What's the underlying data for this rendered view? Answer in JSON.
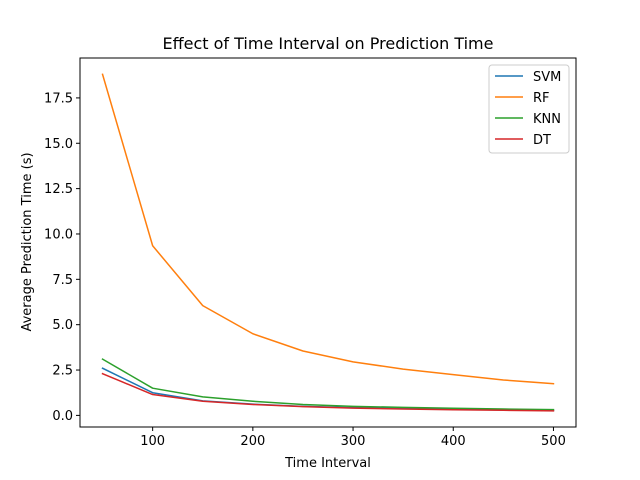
{
  "chart_data": {
    "type": "line",
    "title": "Effect of Time Interval on Prediction Time",
    "xlabel": "Time Interval",
    "ylabel": "Average Prediction Time (s)",
    "x": [
      50,
      100,
      150,
      200,
      250,
      300,
      350,
      400,
      450,
      500
    ],
    "xlim": [
      27.5,
      522.5
    ],
    "ylim": [
      -0.64,
      19.7
    ],
    "xticks": [
      100,
      200,
      300,
      400,
      500
    ],
    "yticks": [
      0.0,
      2.5,
      5.0,
      7.5,
      10.0,
      12.5,
      15.0,
      17.5
    ],
    "xtick_labels": [
      "100",
      "200",
      "300",
      "400",
      "500"
    ],
    "ytick_labels": [
      "0.0",
      "2.5",
      "5.0",
      "7.5",
      "10.0",
      "12.5",
      "15.0",
      "17.5"
    ],
    "grid": false,
    "legend_position": "top-right",
    "series": [
      {
        "name": "SVM",
        "color": "#1f77b4",
        "values": [
          2.6,
          1.25,
          0.8,
          0.62,
          0.5,
          0.43,
          0.38,
          0.34,
          0.3,
          0.28
        ]
      },
      {
        "name": "RF",
        "color": "#ff7f0e",
        "values": [
          18.8,
          9.35,
          6.05,
          4.5,
          3.55,
          2.95,
          2.55,
          2.25,
          1.95,
          1.75
        ]
      },
      {
        "name": "KNN",
        "color": "#2ca02c",
        "values": [
          3.1,
          1.5,
          1.02,
          0.78,
          0.6,
          0.5,
          0.44,
          0.39,
          0.35,
          0.32
        ]
      },
      {
        "name": "DT",
        "color": "#d62728",
        "values": [
          2.3,
          1.15,
          0.78,
          0.6,
          0.48,
          0.4,
          0.35,
          0.31,
          0.28,
          0.25
        ]
      }
    ]
  }
}
